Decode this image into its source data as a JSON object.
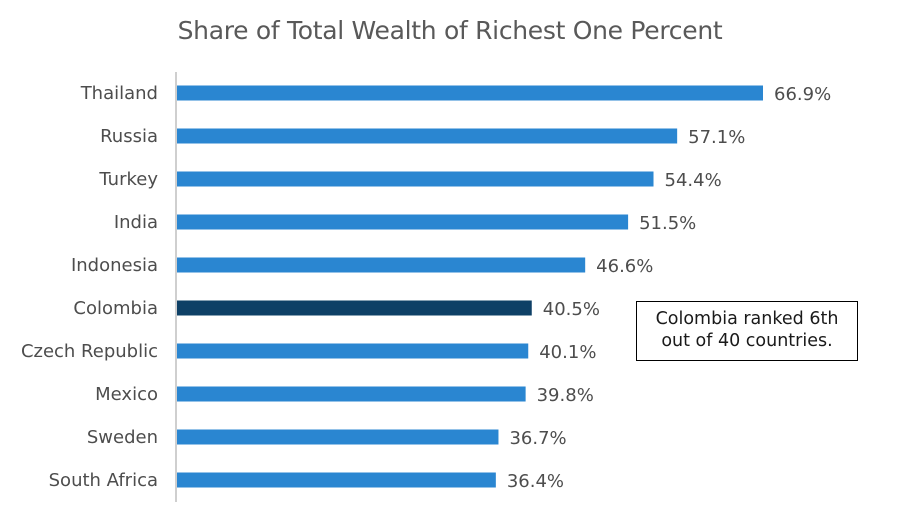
{
  "colors": {
    "bar": "#2A86D1",
    "highlight_bar": "#0E4066",
    "axis_line": "#BFBFBF",
    "label_text": "#4D4D4D",
    "title_text": "#595959"
  },
  "chart_data": {
    "type": "bar",
    "orientation": "horizontal",
    "title": "Share of Total Wealth of Richest One Percent",
    "xlabel": "",
    "ylabel": "",
    "categories": [
      "Thailand",
      "Russia",
      "Turkey",
      "India",
      "Indonesia",
      "Colombia",
      "Czech Republic",
      "Mexico",
      "Sweden",
      "South Africa"
    ],
    "values": [
      66.9,
      57.1,
      54.4,
      51.5,
      46.6,
      40.5,
      40.1,
      39.8,
      36.7,
      36.4
    ],
    "value_labels": [
      "66.9%",
      "57.1%",
      "54.4%",
      "51.5%",
      "46.6%",
      "40.5%",
      "40.1%",
      "39.8%",
      "36.7%",
      "36.4%"
    ],
    "highlight_category": "Colombia",
    "xlim": [
      0,
      66.9
    ],
    "grid": false,
    "annotation": "Colombia ranked 6th out of 40 countries."
  }
}
